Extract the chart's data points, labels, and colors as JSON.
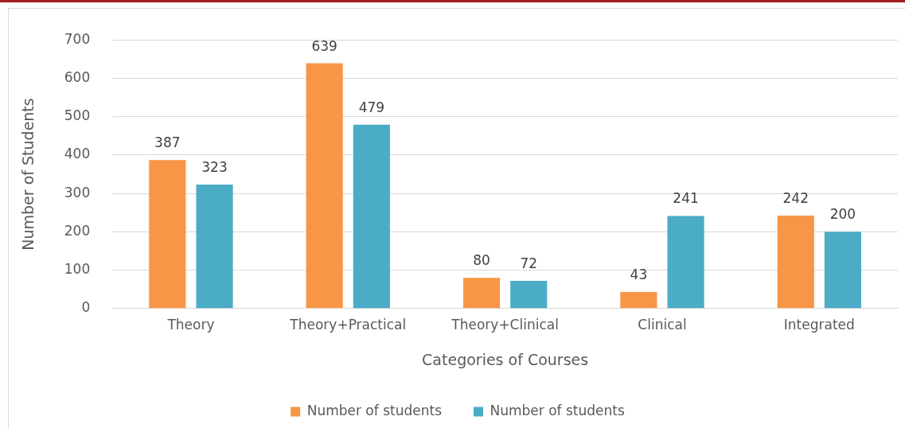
{
  "chart_data": {
    "type": "bar",
    "xlabel": "Categories of Courses",
    "ylabel": "Number of Students",
    "categories": [
      "Theory",
      "Theory+Practical",
      "Theory+Clinical",
      "Clinical",
      "Integrated"
    ],
    "series": [
      {
        "name": "Number of students",
        "color": "#f79646",
        "values": [
          387,
          639,
          80,
          43,
          242
        ]
      },
      {
        "name": "Number of students",
        "color": "#4bacc6",
        "values": [
          323,
          479,
          72,
          241,
          200
        ]
      }
    ],
    "ylim": [
      0,
      700
    ],
    "yticks": [
      0,
      100,
      200,
      300,
      400,
      500,
      600,
      700
    ],
    "grid": "y",
    "legend": "bottom",
    "data_labels": true
  }
}
